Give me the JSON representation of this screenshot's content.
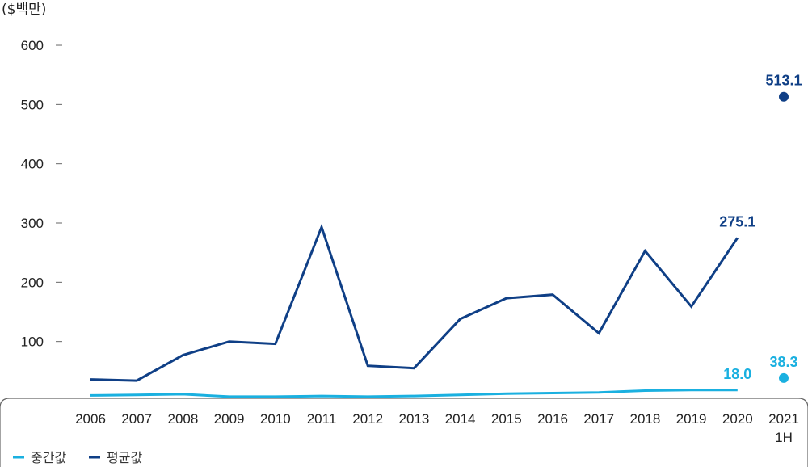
{
  "chart_data": {
    "type": "line",
    "unit_label": "($백만)",
    "categories": [
      "2006",
      "2007",
      "2008",
      "2009",
      "2010",
      "2011",
      "2012",
      "2013",
      "2014",
      "2015",
      "2016",
      "2017",
      "2018",
      "2019",
      "2020",
      "2021 1H"
    ],
    "x_tick_labels": [
      [
        "2006"
      ],
      [
        "2007"
      ],
      [
        "2008"
      ],
      [
        "2009"
      ],
      [
        "2010"
      ],
      [
        "2011"
      ],
      [
        "2012"
      ],
      [
        "2013"
      ],
      [
        "2014"
      ],
      [
        "2015"
      ],
      [
        "2016"
      ],
      [
        "2017"
      ],
      [
        "2018"
      ],
      [
        "2019"
      ],
      [
        "2020"
      ],
      [
        "2021",
        "1H"
      ]
    ],
    "y_ticks": [
      100,
      200,
      300,
      400,
      500,
      600
    ],
    "ylim": [
      0,
      600
    ],
    "grid": false,
    "legend_position": "bottom-left",
    "series": [
      {
        "name": "중간값",
        "color": "#1ab0e0",
        "values": [
          9,
          10,
          11,
          7,
          7,
          8,
          7,
          8,
          10,
          12,
          13,
          14,
          17,
          18,
          18.0,
          38.3
        ],
        "last_point_separate": true,
        "labels": [
          {
            "index": 14,
            "text": "18.0"
          },
          {
            "index": 15,
            "text": "38.3"
          }
        ]
      },
      {
        "name": "평균값",
        "color": "#0f3f86",
        "values": [
          36,
          34,
          77,
          100,
          96,
          293,
          59,
          55,
          138,
          173,
          179,
          114,
          253,
          159,
          275.1,
          513.1
        ],
        "last_point_separate": true,
        "labels": [
          {
            "index": 14,
            "text": "275.1"
          },
          {
            "index": 15,
            "text": "513.1"
          }
        ]
      }
    ]
  }
}
